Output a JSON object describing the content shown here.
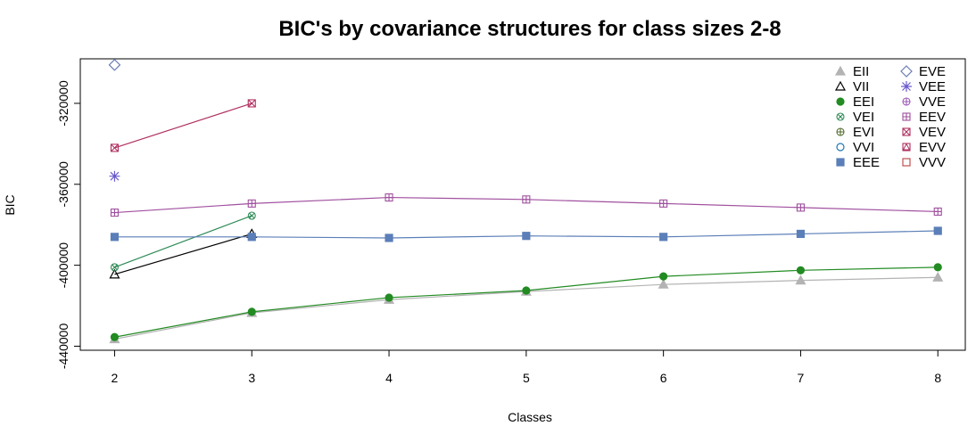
{
  "chart_data": {
    "type": "line",
    "title": "BIC's by covariance structures for class sizes 2-8",
    "xlabel": "Classes",
    "ylabel": "BIC",
    "x": [
      2,
      3,
      4,
      5,
      6,
      7,
      8
    ],
    "xlim": [
      1.75,
      8.2
    ],
    "ylim": [
      -442000,
      -298000
    ],
    "x_ticks": [
      "2",
      "3",
      "4",
      "5",
      "6",
      "7",
      "8"
    ],
    "y_ticks": [
      {
        "value": -320000,
        "label": "-320000"
      },
      {
        "value": -360000,
        "label": "-360000"
      },
      {
        "value": -400000,
        "label": "-400000"
      },
      {
        "value": -440000,
        "label": "-440000"
      }
    ],
    "grid": false,
    "legend_position": "top-right",
    "series": [
      {
        "name": "EII",
        "color": "#b3b3b3",
        "marker": "triangle-filled",
        "values": [
          -436500,
          -423500,
          -417000,
          -413000,
          -409500,
          -407500,
          -406000
        ]
      },
      {
        "name": "VII",
        "color": "#000000",
        "marker": "triangle-open",
        "values": [
          -404500,
          -384500,
          null,
          null,
          null,
          null,
          null
        ]
      },
      {
        "name": "EEI",
        "color": "#228b22",
        "marker": "circle-filled",
        "values": [
          -435500,
          -423000,
          -416000,
          -412500,
          -405500,
          -402500,
          -401000
        ]
      },
      {
        "name": "VEI",
        "color": "#2e8b57",
        "marker": "circle-x",
        "values": [
          -401000,
          -375500,
          null,
          null,
          null,
          null,
          null
        ]
      },
      {
        "name": "EVI",
        "color": "#556b2f",
        "marker": "circle-plus",
        "values": [
          null,
          null,
          null,
          null,
          null,
          null,
          null
        ]
      },
      {
        "name": "VVI",
        "color": "#1f78b4",
        "marker": "circle-open",
        "values": [
          null,
          null,
          null,
          null,
          null,
          null,
          null
        ]
      },
      {
        "name": "EEE",
        "color": "#5b7fb8",
        "marker": "square-filled",
        "values": [
          -386000,
          -386000,
          -386500,
          -385500,
          -386000,
          -384500,
          -383000
        ]
      },
      {
        "name": "EVE",
        "color": "#6b7fb3",
        "marker": "diamond-open",
        "values": [
          -301000,
          null,
          null,
          null,
          null,
          null,
          null
        ]
      },
      {
        "name": "VEE",
        "color": "#6a5acd",
        "marker": "asterisk",
        "values": [
          -356000,
          null,
          null,
          null,
          null,
          null,
          null
        ]
      },
      {
        "name": "VVE",
        "color": "#9b59b6",
        "marker": "circle-plus",
        "values": [
          null,
          null,
          null,
          null,
          null,
          null,
          null
        ]
      },
      {
        "name": "EEV",
        "color": "#a0509f",
        "marker": "square-plus",
        "values": [
          -374000,
          -369500,
          -366500,
          -367500,
          -369500,
          -371500,
          -373500
        ]
      },
      {
        "name": "VEV",
        "color": "#b03060",
        "marker": "square-x",
        "values": [
          -342000,
          -320000,
          null,
          null,
          null,
          null,
          null
        ]
      },
      {
        "name": "EVV",
        "color": "#b03060",
        "marker": "square-triangle",
        "values": [
          null,
          null,
          null,
          null,
          null,
          null,
          null
        ]
      },
      {
        "name": "VVV",
        "color": "#c05050",
        "marker": "square-open",
        "values": [
          null,
          null,
          null,
          null,
          null,
          null,
          null
        ]
      }
    ]
  }
}
